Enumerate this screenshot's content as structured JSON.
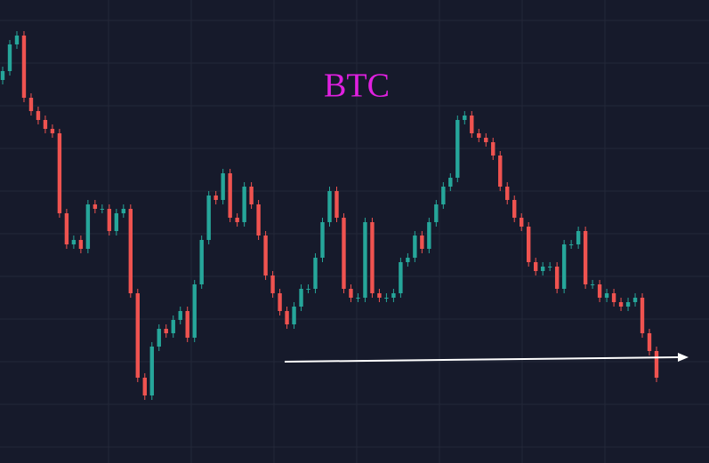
{
  "chart_data": {
    "type": "candlestick",
    "title": "BTC",
    "open": [
      431,
      441,
      471,
      481,
      411,
      396,
      386,
      376,
      371,
      281,
      246,
      251,
      241,
      291,
      286,
      286,
      261,
      281,
      286,
      191,
      96,
      76,
      131,
      151,
      146,
      161,
      171,
      141,
      201,
      251,
      301,
      296,
      326,
      276,
      271,
      311,
      291,
      256,
      211,
      191,
      171,
      156,
      176,
      196,
      196,
      231,
      271,
      306,
      276,
      196,
      186,
      186,
      271,
      191,
      186,
      186,
      191,
      226,
      231,
      256,
      241,
      271,
      291,
      311,
      321,
      386,
      391,
      371,
      366,
      361,
      346,
      311,
      296,
      276,
      266,
      226,
      216,
      221,
      221,
      196,
      246,
      246,
      261,
      201,
      201,
      186,
      191,
      181,
      176,
      181,
      186,
      146,
      126
    ],
    "high": [
      446,
      476,
      486,
      486,
      416,
      401,
      391,
      381,
      376,
      286,
      256,
      256,
      296,
      296,
      291,
      291,
      286,
      291,
      291,
      196,
      101,
      136,
      156,
      156,
      166,
      176,
      176,
      206,
      256,
      306,
      306,
      331,
      331,
      281,
      316,
      316,
      296,
      261,
      216,
      196,
      176,
      181,
      201,
      201,
      236,
      276,
      311,
      311,
      281,
      201,
      191,
      276,
      276,
      196,
      191,
      196,
      231,
      236,
      261,
      261,
      276,
      296,
      316,
      326,
      391,
      396,
      396,
      376,
      371,
      366,
      351,
      316,
      301,
      281,
      271,
      231,
      226,
      226,
      226,
      251,
      251,
      266,
      266,
      206,
      206,
      196,
      196,
      186,
      186,
      191,
      191,
      151,
      131
    ],
    "low": [
      426,
      436,
      466,
      406,
      391,
      381,
      371,
      366,
      276,
      241,
      241,
      236,
      236,
      281,
      281,
      256,
      256,
      276,
      186,
      91,
      71,
      71,
      126,
      141,
      141,
      156,
      136,
      136,
      196,
      246,
      291,
      291,
      271,
      266,
      266,
      286,
      251,
      206,
      186,
      166,
      151,
      151,
      171,
      191,
      191,
      226,
      266,
      271,
      191,
      181,
      181,
      181,
      186,
      181,
      181,
      181,
      186,
      221,
      226,
      236,
      236,
      266,
      286,
      306,
      316,
      381,
      366,
      361,
      356,
      341,
      306,
      291,
      271,
      261,
      221,
      211,
      211,
      216,
      191,
      191,
      241,
      241,
      196,
      196,
      181,
      181,
      176,
      171,
      171,
      176,
      141,
      121,
      91
    ],
    "close": [
      441,
      471,
      481,
      411,
      396,
      386,
      376,
      371,
      281,
      246,
      251,
      241,
      291,
      286,
      286,
      261,
      281,
      286,
      191,
      96,
      76,
      131,
      151,
      146,
      161,
      171,
      141,
      201,
      251,
      301,
      296,
      326,
      276,
      271,
      311,
      291,
      256,
      211,
      191,
      171,
      156,
      176,
      196,
      196,
      231,
      271,
      306,
      276,
      196,
      186,
      186,
      271,
      191,
      186,
      186,
      191,
      226,
      231,
      256,
      241,
      271,
      291,
      311,
      321,
      386,
      391,
      371,
      366,
      361,
      346,
      311,
      296,
      276,
      266,
      226,
      216,
      221,
      221,
      196,
      246,
      246,
      261,
      201,
      201,
      186,
      191,
      181,
      176,
      181,
      186,
      146,
      126,
      96
    ],
    "ylim": [
      0,
      521
    ],
    "up_color": "#26a69a",
    "down_color": "#ef5350",
    "title_color": "#e020e0"
  }
}
